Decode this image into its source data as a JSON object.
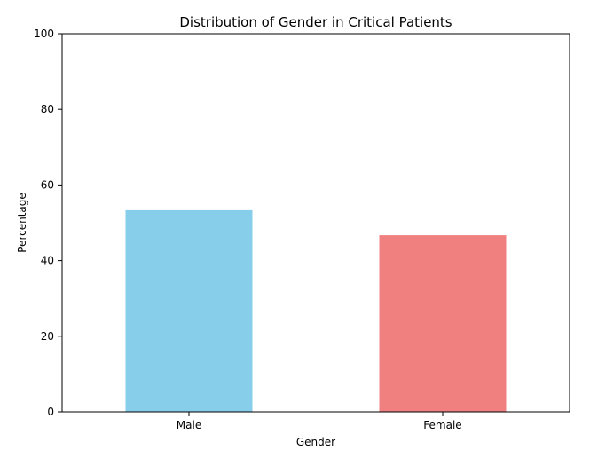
{
  "chart_data": {
    "type": "bar",
    "title": "Distribution of Gender in Critical Patients",
    "xlabel": "Gender",
    "ylabel": "Percentage",
    "categories": [
      "Male",
      "Female"
    ],
    "values": [
      53.3,
      46.7
    ],
    "colors": [
      "#87ceeb",
      "#f08080"
    ],
    "ylim": [
      0,
      100
    ],
    "yticks": [
      0,
      20,
      40,
      60,
      80,
      100
    ],
    "grid": false,
    "legend": "none"
  }
}
